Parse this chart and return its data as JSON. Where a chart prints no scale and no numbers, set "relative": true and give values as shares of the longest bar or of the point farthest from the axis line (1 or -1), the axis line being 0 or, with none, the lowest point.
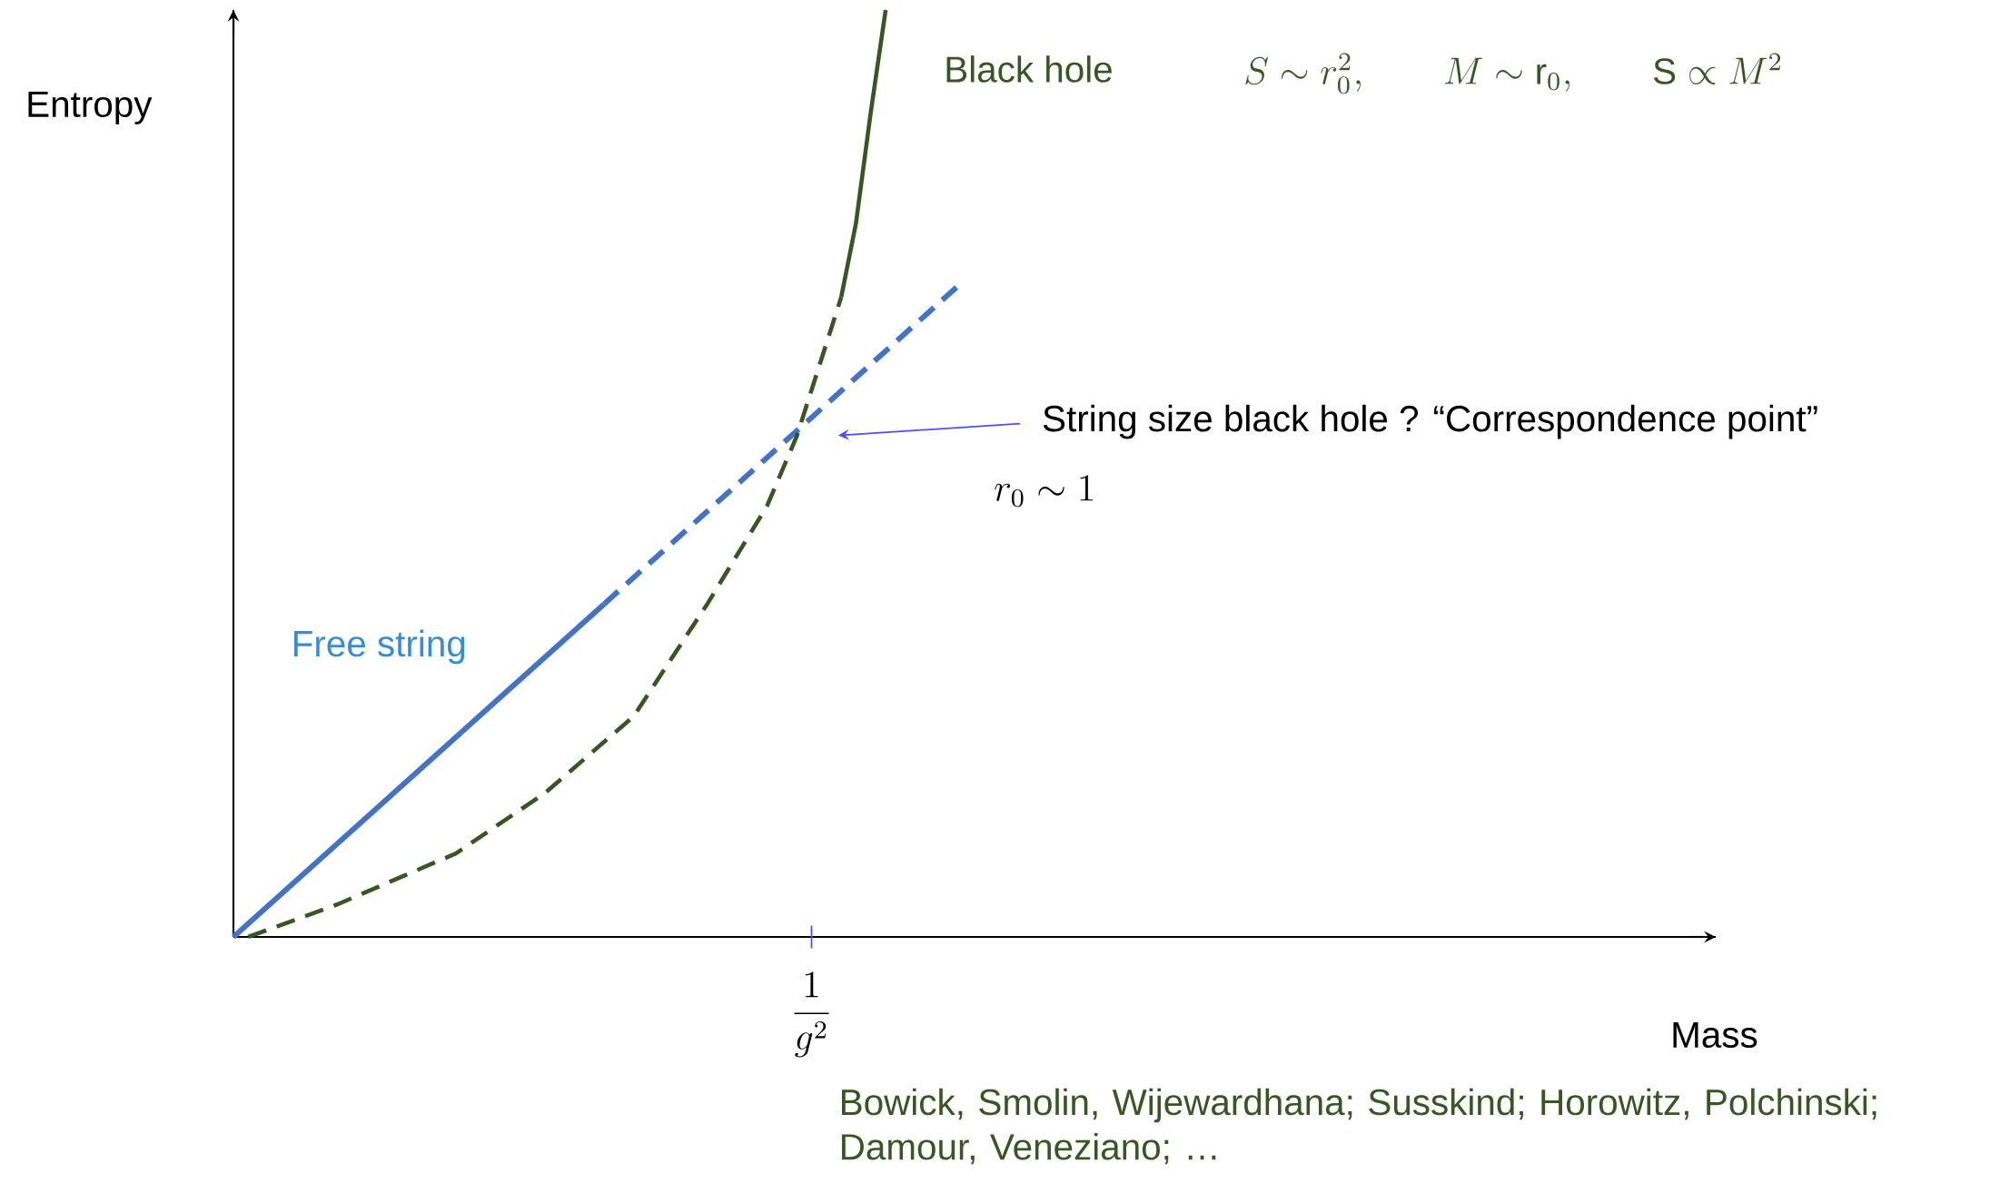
{
  "chart_data": {
    "type": "line",
    "relative": true,
    "xlabel": "Mass",
    "ylabel": "Entropy",
    "categories": [
      null,
      null,
      null,
      null,
      null,
      null,
      null,
      null,
      null,
      null,
      null,
      null,
      null,
      null,
      null,
      null,
      null,
      null,
      null,
      null,
      null,
      null,
      null,
      null,
      null,
      null,
      null,
      null,
      null,
      null,
      null,
      null,
      null,
      null,
      null,
      null,
      null,
      null,
      null,
      null,
      null,
      null,
      null,
      null,
      null,
      null,
      null,
      null,
      null,
      null,
      null,
      null,
      null,
      null,
      null,
      null,
      null,
      null,
      null,
      null,
      null,
      null,
      null,
      null,
      null,
      null,
      null,
      null,
      null,
      null,
      null,
      null,
      null,
      null,
      null,
      null,
      null,
      null,
      null,
      null,
      null,
      null,
      null,
      null,
      null,
      null,
      null,
      null,
      null,
      null,
      null,
      null,
      null,
      null,
      null,
      null,
      null,
      null,
      null,
      null,
      null
    ],
    "series": [
      {
        "name": "Free string",
        "color": "#4472c4",
        "line_style": "solid",
        "values": [
          0,
          null,
          null,
          null,
          null,
          null,
          null,
          null,
          null,
          null,
          null,
          null,
          null,
          null,
          null,
          null,
          null,
          null,
          null,
          null,
          null,
          null,
          null,
          null,
          null,
          0.359,
          null,
          null,
          null,
          null,
          null,
          null,
          null,
          null,
          null,
          null,
          null,
          null,
          null,
          null,
          null,
          null,
          null,
          null,
          null,
          null,
          null,
          null,
          null,
          null,
          null,
          null,
          null,
          null,
          null,
          null,
          null,
          null,
          null,
          null,
          null,
          null,
          null,
          null,
          null,
          null,
          null,
          null,
          null,
          null,
          null,
          null,
          null,
          null,
          null,
          null,
          null,
          null,
          null,
          null,
          null,
          null,
          null,
          null,
          null,
          null,
          null,
          null,
          null,
          null,
          null,
          null,
          null,
          null,
          null,
          null,
          null,
          null,
          null,
          null,
          null
        ]
      },
      {
        "color": "#4472c4",
        "line_style": "dashed",
        "values": [
          null,
          null,
          null,
          null,
          null,
          null,
          null,
          null,
          null,
          null,
          null,
          null,
          null,
          null,
          null,
          null,
          null,
          null,
          null,
          null,
          null,
          null,
          null,
          null,
          null,
          0.359,
          null,
          null,
          null,
          null,
          null,
          null,
          null,
          null,
          null,
          null,
          null,
          null,
          null,
          null,
          null,
          null,
          null,
          null,
          null,
          null,
          null,
          null,
          null,
          0.704,
          null,
          null,
          null,
          null,
          null,
          null,
          null,
          null,
          null,
          null,
          null,
          null,
          null,
          null,
          null,
          null,
          null,
          null,
          null,
          null,
          null,
          null,
          null,
          null,
          null,
          null,
          null,
          null,
          null,
          null,
          null,
          null,
          null,
          null,
          null,
          null,
          null,
          null,
          null,
          null,
          null,
          null,
          null,
          null,
          null,
          null,
          null,
          null,
          null,
          null,
          null
        ]
      },
      {
        "color": "#375623",
        "line_style": "dashed",
        "values": [
          null,
          0,
          null,
          null,
          null,
          null,
          null,
          0.035,
          null,
          null,
          null,
          null,
          null,
          null,
          null,
          0.09,
          null,
          null,
          null,
          null,
          null,
          0.155,
          null,
          null,
          null,
          null,
          null,
          0.238,
          null,
          null,
          null,
          null,
          0.36,
          null,
          null,
          null,
          0.465,
          null,
          0.54,
          null,
          null,
          0.69,
          null,
          null,
          null,
          null,
          null,
          null,
          null,
          null,
          null,
          null,
          null,
          null,
          null,
          null,
          null,
          null,
          null,
          null,
          null,
          null,
          null,
          null,
          null,
          null,
          null,
          null,
          null,
          null,
          null,
          null,
          null,
          null,
          null,
          null,
          null,
          null,
          null,
          null,
          null,
          null,
          null,
          null,
          null,
          null,
          null,
          null,
          null,
          null,
          null,
          null,
          null,
          null,
          null,
          null,
          null,
          null,
          null,
          null,
          null
        ]
      },
      {
        "name": "Black hole",
        "color": "#375623",
        "line_style": "solid",
        "values": [
          null,
          null,
          null,
          null,
          null,
          null,
          null,
          null,
          null,
          null,
          null,
          null,
          null,
          null,
          null,
          null,
          null,
          null,
          null,
          null,
          null,
          null,
          null,
          null,
          null,
          null,
          null,
          null,
          null,
          null,
          null,
          null,
          null,
          null,
          null,
          null,
          null,
          null,
          null,
          null,
          null,
          0.69,
          0.77,
          0.89,
          1.0,
          null,
          null,
          null,
          null,
          null,
          null,
          null,
          null,
          null,
          null,
          null,
          null,
          null,
          null,
          null,
          null,
          null,
          null,
          null,
          null,
          null,
          null,
          null,
          null,
          null,
          null,
          null,
          null,
          null,
          null,
          null,
          null,
          null,
          null,
          null,
          null,
          null,
          null,
          null,
          null,
          null,
          null,
          null,
          null,
          null,
          null,
          null,
          null,
          null,
          null,
          null,
          null,
          null,
          null,
          null,
          null
        ]
      }
    ],
    "annotations": [
      "S \\sim r_0^2,\\qquad M \\sim \\mathrm{r}_0,\\qquad \\mathrm{S} \\propto M^2",
      "String size black hole ?   “Correspondence point”",
      "r_0 \\sim 1",
      "Bowick, Smolin, Wijewardhana;  Susskind;  Horowitz, Polchinski; Damour, Veneziano; …",
      "\\frac{1}{g^2}"
    ]
  }
}
